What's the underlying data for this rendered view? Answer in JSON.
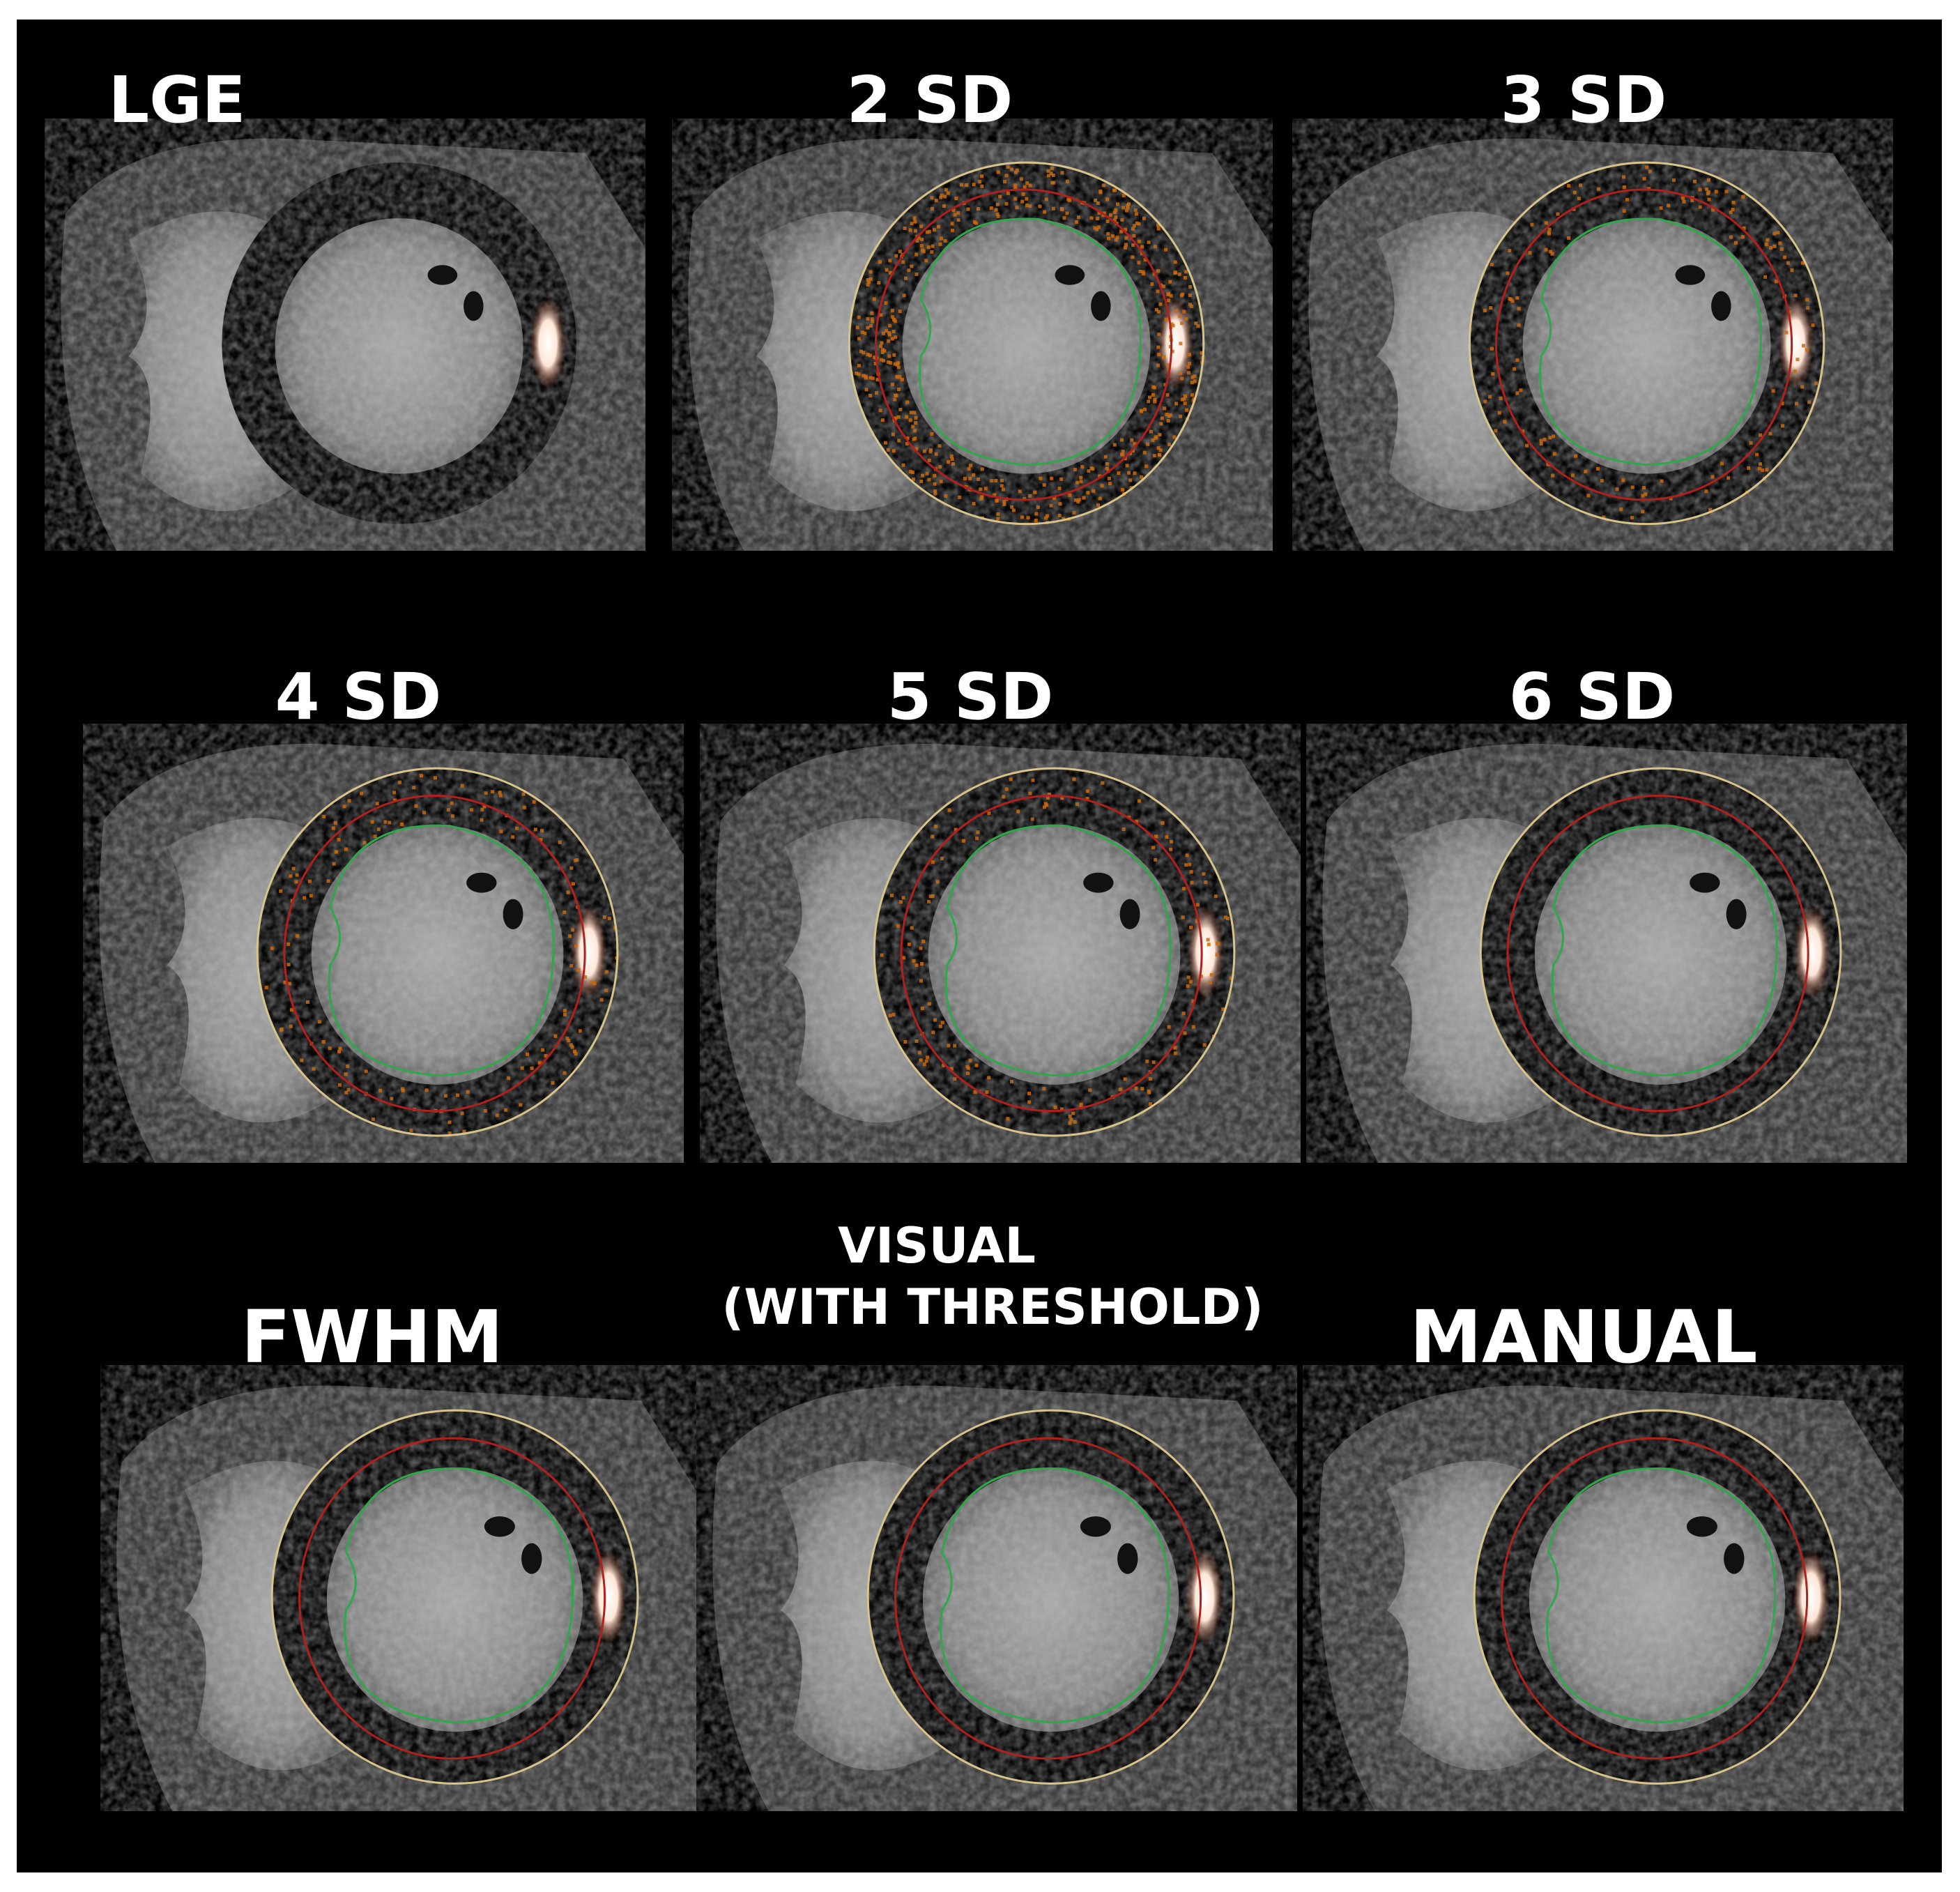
{
  "figure": {
    "panels": [
      {
        "title": "LGE",
        "subtitle": "",
        "overlay": "none"
      },
      {
        "title": "2 SD",
        "subtitle": "",
        "overlay": "dense"
      },
      {
        "title": "3 SD",
        "subtitle": "",
        "overlay": "medium"
      },
      {
        "title": "4 SD",
        "subtitle": "",
        "overlay": "medium"
      },
      {
        "title": "5 SD",
        "subtitle": "",
        "overlay": "medium"
      },
      {
        "title": "6 SD",
        "subtitle": "",
        "overlay": "light"
      },
      {
        "title": "FWHM",
        "subtitle": "",
        "overlay": "light"
      },
      {
        "title": "VISUAL",
        "subtitle": "(WITH THRESHOLD)",
        "overlay": "light"
      },
      {
        "title": "MANUAL",
        "subtitle": "",
        "overlay": "light"
      }
    ],
    "colors": {
      "background": "#000000",
      "epicardial_contour": "#d8c48a",
      "endocardial_contour": "#2ea84a",
      "midwall_contour": "#b0201c",
      "enhancement": "#ffe6d6",
      "threshold_pixels": "#c86a10"
    }
  }
}
